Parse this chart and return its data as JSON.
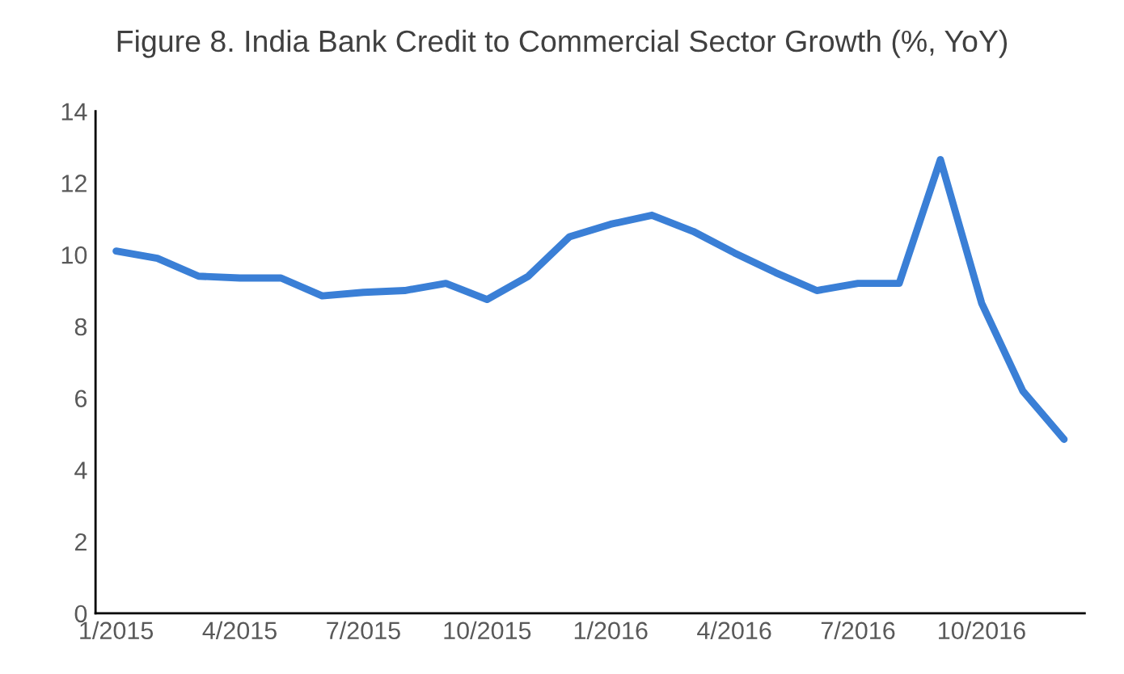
{
  "chart_data": {
    "type": "line",
    "title": "Figure 8. India Bank Credit to Commercial Sector Growth (%, YoY)",
    "categories": [
      "1/2015",
      null,
      null,
      "4/2015",
      null,
      null,
      "7/2015",
      null,
      null,
      "10/2015",
      null,
      null,
      "1/2016",
      null,
      null,
      "4/2016",
      null,
      null,
      "7/2016",
      null,
      null,
      "10/2016",
      null,
      null
    ],
    "series": [
      {
        "color": "#3a7fd6",
        "values": [
          10.1,
          9.9,
          9.4,
          9.35,
          9.35,
          8.85,
          8.95,
          9.0,
          9.2,
          8.75,
          9.4,
          10.5,
          10.85,
          11.1,
          10.65,
          10.05,
          9.5,
          9.0,
          9.2,
          9.2,
          12.65,
          8.65,
          6.2,
          4.85
        ]
      }
    ],
    "ylim": [
      0,
      14
    ],
    "yticks": [
      0,
      2,
      4,
      6,
      8,
      10,
      12,
      14
    ],
    "grid": false,
    "legend": false,
    "marker": "none",
    "line_style": "solid"
  }
}
